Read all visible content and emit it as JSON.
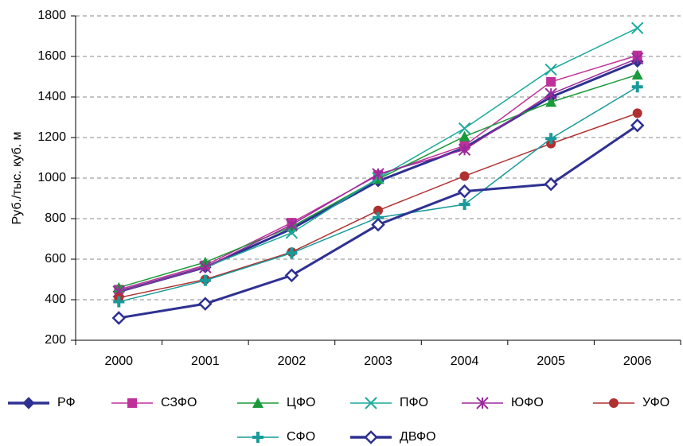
{
  "chart_data": {
    "type": "line",
    "y_label": "Руб./тыс. куб. м",
    "categories": [
      "2000",
      "2001",
      "2002",
      "2003",
      "2004",
      "2005",
      "2006"
    ],
    "ylim": [
      200,
      1800
    ],
    "yticks": [
      200,
      400,
      600,
      800,
      1000,
      1200,
      1400,
      1600,
      1800
    ],
    "grid": true,
    "legend": "bottom",
    "series": [
      {
        "name": "РФ",
        "color": "#2e3192",
        "marker": "diamond",
        "values": [
          440,
          560,
          750,
          985,
          1150,
          1400,
          1575
        ]
      },
      {
        "name": "СЗФО",
        "color": "#c0309a",
        "marker": "square",
        "values": [
          450,
          570,
          780,
          1015,
          1160,
          1475,
          1605
        ]
      },
      {
        "name": "ЦФО",
        "color": "#1a9a3a",
        "marker": "triangle",
        "values": [
          460,
          585,
          760,
          995,
          1205,
          1375,
          1510
        ]
      },
      {
        "name": "ПФО",
        "color": "#1aaa9a",
        "marker": "x",
        "values": [
          440,
          560,
          730,
          1000,
          1245,
          1535,
          1740
        ]
      },
      {
        "name": "ЮФО",
        "color": "#9a2a9a",
        "marker": "star",
        "values": [
          440,
          560,
          770,
          1020,
          1140,
          1415,
          1590
        ]
      },
      {
        "name": "УФО",
        "color": "#b03030",
        "marker": "circle",
        "values": [
          410,
          500,
          635,
          840,
          1010,
          1170,
          1320
        ]
      },
      {
        "name": "СФО",
        "color": "#1a9a9a",
        "marker": "plus",
        "values": [
          390,
          495,
          630,
          805,
          870,
          1195,
          1450
        ]
      },
      {
        "name": "ДВФО",
        "color": "#2e3192",
        "marker": "open-diamond",
        "values": [
          310,
          380,
          520,
          770,
          935,
          970,
          1260
        ]
      }
    ]
  }
}
